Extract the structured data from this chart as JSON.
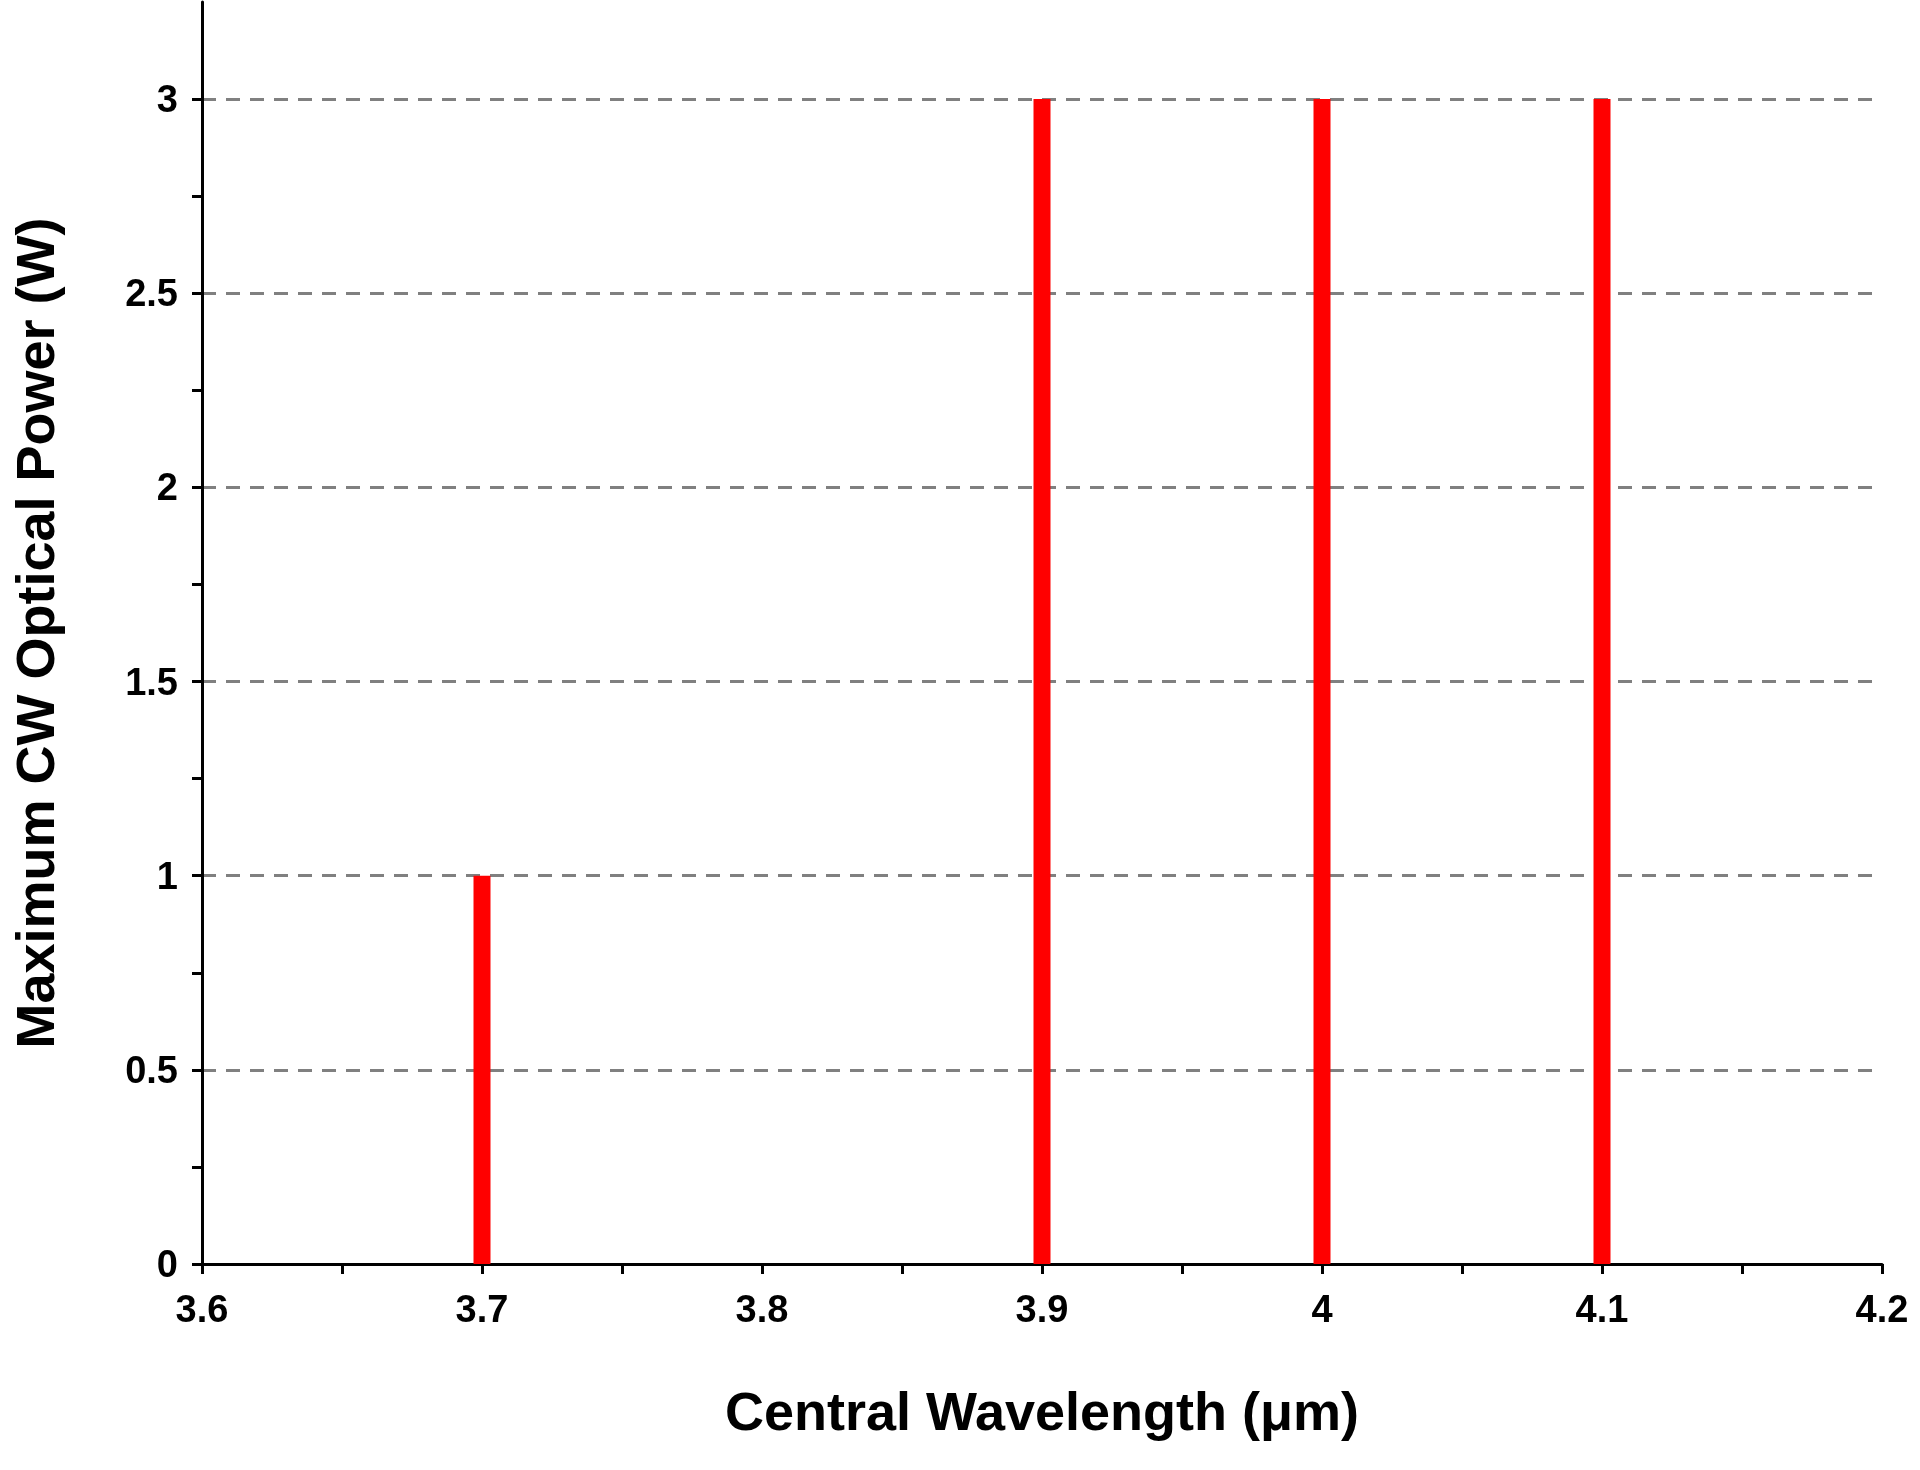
{
  "chart_data": {
    "type": "bar",
    "xlabel": "Central Wavelength (μm)",
    "ylabel": "Maximum CW Optical Power (W)",
    "x": [
      3.7,
      3.9,
      4.0,
      4.1
    ],
    "values": [
      1,
      3,
      3,
      3
    ],
    "color": "#ff0000",
    "xlim": [
      3.6,
      4.2
    ],
    "xticks": [
      3.6,
      {
        "value": 3.65,
        "label": null
      },
      3.7,
      {
        "value": 3.75,
        "label": null
      },
      3.8,
      {
        "value": 3.85,
        "label": null
      },
      3.9,
      {
        "value": 3.95,
        "label": null
      },
      4,
      {
        "value": 4.05,
        "label": null
      },
      4.1,
      {
        "value": 4.15,
        "label": null
      },
      4.2
    ],
    "ylim": [
      0,
      3.25
    ],
    "yticks": [
      0,
      {
        "value": 0.25,
        "label": null
      },
      0.5,
      {
        "value": 0.75,
        "label": null
      },
      1,
      {
        "value": 1.25,
        "label": null
      },
      1.5,
      {
        "value": 1.75,
        "label": null
      },
      2,
      {
        "value": 2.25,
        "label": null
      },
      2.5,
      {
        "value": 2.75,
        "label": null
      },
      3
    ],
    "grid": "y",
    "line_style": "dashed"
  }
}
